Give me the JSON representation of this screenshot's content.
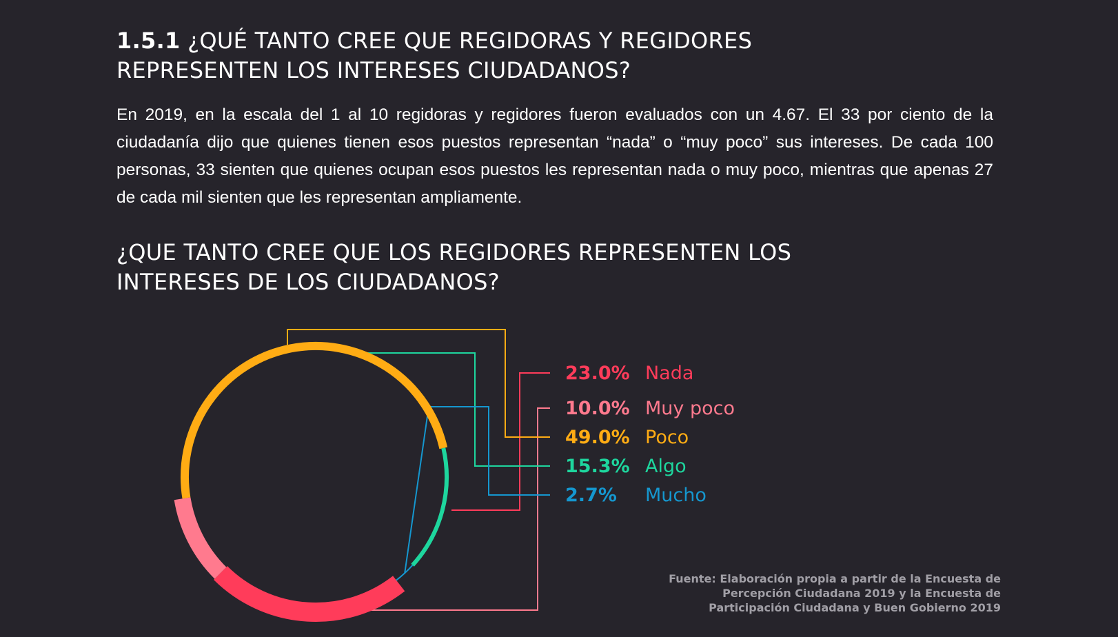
{
  "section": {
    "number": "1.5.1",
    "title": "¿QUÉ TANTO CREE QUE REGIDORAS Y REGIDORES REPRESENTEN LOS INTERESES CIUDADANOS?"
  },
  "intro_text": "En 2019, en la escala del 1 al 10 regidoras y regidores fueron evaluados con un 4.67. El 33 por ciento de la ciudadanía dijo que quienes tienen esos puestos representan “nada” o “muy poco” sus intereses. De cada 100 personas, 33 sienten que quienes ocupan esos puestos les representan nada o muy poco, mientras que apenas 27 de cada mil sienten que les representan ampliamente.",
  "source_text": "Fuente: Elaboración propia a partir de la Encuesta de Percepción Ciudadana 2019 y la Encuesta de Participación Ciudadana y Buen Gobierno 2019",
  "chart_data": {
    "type": "pie",
    "style": "donut-ring",
    "title": "¿QUE TANTO CREE QUE LOS REGIDORES REPRESENTEN LOS INTERESES DE LOS CIUDADANOS?",
    "categories": [
      "Nada",
      "Muy poco",
      "Poco",
      "Algo",
      "Mucho"
    ],
    "values": [
      23.0,
      10.0,
      49.0,
      15.3,
      2.7
    ],
    "value_labels": [
      "23.0%",
      "10.0%",
      "49.0%",
      "15.3%",
      "2.7%"
    ],
    "colors": [
      "#ff3c5a",
      "#ff7a8e",
      "#ffac14",
      "#1ed69e",
      "#1597cf"
    ],
    "start_angle_deg": 142,
    "direction": "clockwise",
    "legend_placement": "right"
  }
}
